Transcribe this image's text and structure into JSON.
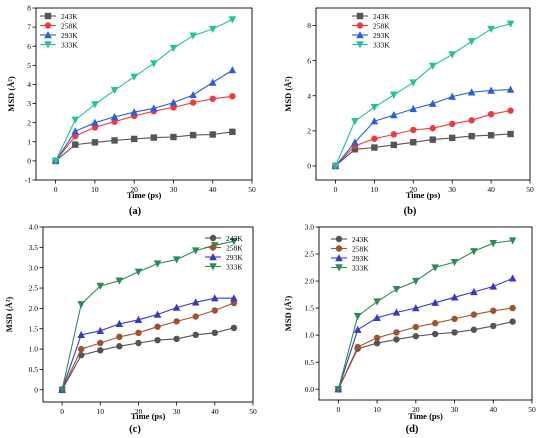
{
  "chart_data": [
    {
      "panel_label": "(a)",
      "type": "line",
      "xlabel": "Time (ps)",
      "ylabel": "MSD (Å²)",
      "xlim": [
        -5,
        50
      ],
      "ylim": [
        -1,
        8
      ],
      "xticks": [
        0,
        10,
        20,
        30,
        40,
        50
      ],
      "yticks": [
        -1,
        0,
        1,
        2,
        3,
        4,
        5,
        6,
        7,
        8
      ],
      "grid": false,
      "legend_position": "top-left",
      "x": [
        0,
        5,
        10,
        15,
        20,
        25,
        30,
        35,
        40,
        45
      ],
      "series": [
        {
          "name": "243K",
          "color": "#555555",
          "marker": "square",
          "values": [
            0,
            0.85,
            0.97,
            1.07,
            1.15,
            1.22,
            1.25,
            1.35,
            1.38,
            1.52
          ]
        },
        {
          "name": "258K",
          "color": "#f23a3a",
          "marker": "circle",
          "values": [
            0,
            1.3,
            1.75,
            2.05,
            2.35,
            2.6,
            2.8,
            3.05,
            3.25,
            3.38
          ]
        },
        {
          "name": "293K",
          "color": "#2b5fd9",
          "marker": "triangle-up",
          "values": [
            0,
            1.55,
            2.0,
            2.3,
            2.55,
            2.75,
            3.05,
            3.45,
            4.1,
            4.75
          ]
        },
        {
          "name": "333K",
          "color": "#22c29a",
          "marker": "triangle-down",
          "values": [
            0,
            2.15,
            2.95,
            3.7,
            4.4,
            5.1,
            5.9,
            6.55,
            6.9,
            7.4
          ]
        }
      ]
    },
    {
      "panel_label": "(b)",
      "type": "line",
      "xlabel": "Time (ps)",
      "ylabel": "MSD (Å²)",
      "xlim": [
        -5,
        50
      ],
      "ylim": [
        -0.8,
        9
      ],
      "xticks": [
        0,
        10,
        20,
        30,
        40,
        50
      ],
      "yticks": [
        0,
        2,
        4,
        6,
        8
      ],
      "grid": false,
      "legend_position": "top-right",
      "x": [
        0,
        5,
        10,
        15,
        20,
        25,
        30,
        35,
        40,
        45
      ],
      "series": [
        {
          "name": "243K",
          "color": "#555555",
          "marker": "square",
          "values": [
            0,
            0.95,
            1.05,
            1.2,
            1.35,
            1.5,
            1.6,
            1.7,
            1.75,
            1.82
          ]
        },
        {
          "name": "258K",
          "color": "#f23a3a",
          "marker": "circle",
          "values": [
            0,
            1.15,
            1.55,
            1.8,
            2.05,
            2.15,
            2.4,
            2.6,
            2.95,
            3.15
          ]
        },
        {
          "name": "293K",
          "color": "#2b5fd9",
          "marker": "triangle-up",
          "values": [
            0,
            1.35,
            2.55,
            2.9,
            3.25,
            3.55,
            3.95,
            4.2,
            4.3,
            4.35
          ]
        },
        {
          "name": "333K",
          "color": "#22c29a",
          "marker": "triangle-down",
          "values": [
            0,
            2.55,
            3.35,
            4.05,
            4.75,
            5.7,
            6.35,
            7.1,
            7.8,
            8.1
          ]
        }
      ]
    },
    {
      "panel_label": "(c)",
      "type": "line",
      "xlabel": "Time (ps)",
      "ylabel": "MSD (Å²)",
      "xlim": [
        -5,
        50
      ],
      "ylim": [
        -0.3,
        4.0
      ],
      "xticks": [
        0,
        10,
        20,
        30,
        40,
        50
      ],
      "yticks": [
        0,
        0.5,
        1.0,
        1.5,
        2.0,
        2.5,
        3.0,
        3.5,
        4.0
      ],
      "ytick_labels": [
        "0",
        "0.5",
        "1.0",
        "1.5",
        "2.0",
        "2.5",
        "3.0",
        "3.5",
        "4.0"
      ],
      "grid": false,
      "legend_position": "top-right",
      "x": [
        0,
        5,
        10,
        15,
        20,
        25,
        30,
        35,
        40,
        45
      ],
      "series": [
        {
          "name": "243K",
          "color": "#545454",
          "marker": "circle",
          "values": [
            0,
            0.85,
            0.97,
            1.07,
            1.15,
            1.22,
            1.25,
            1.35,
            1.4,
            1.52
          ]
        },
        {
          "name": "258K",
          "color": "#a0522d",
          "marker": "circle",
          "values": [
            0,
            1.0,
            1.15,
            1.3,
            1.4,
            1.55,
            1.68,
            1.8,
            1.95,
            2.13
          ]
        },
        {
          "name": "293K",
          "color": "#3838c8",
          "marker": "triangle-up",
          "values": [
            0,
            1.35,
            1.45,
            1.62,
            1.72,
            1.85,
            2.02,
            2.15,
            2.25,
            2.25
          ]
        },
        {
          "name": "333K",
          "color": "#2e8b57",
          "marker": "triangle-down",
          "values": [
            0,
            2.1,
            2.55,
            2.68,
            2.9,
            3.1,
            3.2,
            3.42,
            3.55,
            3.65
          ]
        }
      ]
    },
    {
      "panel_label": "(d)",
      "type": "line",
      "xlabel": "Time (ps)",
      "ylabel": "MSD (Å²)",
      "xlim": [
        -5,
        50
      ],
      "ylim": [
        -0.2,
        3.0
      ],
      "xticks": [
        0,
        10,
        20,
        30,
        40,
        50
      ],
      "yticks": [
        0,
        0.5,
        1.0,
        1.5,
        2.0,
        2.5,
        3.0
      ],
      "ytick_labels": [
        "0.0",
        "0.5",
        "1.0",
        "1.5",
        "2.0",
        "2.5",
        "3.0"
      ],
      "grid": false,
      "legend_position": "top-left",
      "x": [
        0,
        5,
        10,
        15,
        20,
        25,
        30,
        35,
        40,
        45
      ],
      "series": [
        {
          "name": "243K",
          "color": "#545454",
          "marker": "circle",
          "values": [
            0,
            0.75,
            0.85,
            0.92,
            0.98,
            1.02,
            1.05,
            1.1,
            1.17,
            1.25
          ]
        },
        {
          "name": "258K",
          "color": "#a0522d",
          "marker": "circle",
          "values": [
            0,
            0.78,
            0.95,
            1.05,
            1.15,
            1.22,
            1.3,
            1.38,
            1.45,
            1.5
          ]
        },
        {
          "name": "293K",
          "color": "#3838c8",
          "marker": "triangle-up",
          "values": [
            0,
            1.1,
            1.32,
            1.42,
            1.5,
            1.6,
            1.7,
            1.8,
            1.9,
            2.05
          ]
        },
        {
          "name": "333K",
          "color": "#2e8b57",
          "marker": "triangle-down",
          "values": [
            0,
            1.35,
            1.62,
            1.85,
            2.0,
            2.25,
            2.35,
            2.55,
            2.7,
            2.75
          ]
        }
      ]
    }
  ]
}
